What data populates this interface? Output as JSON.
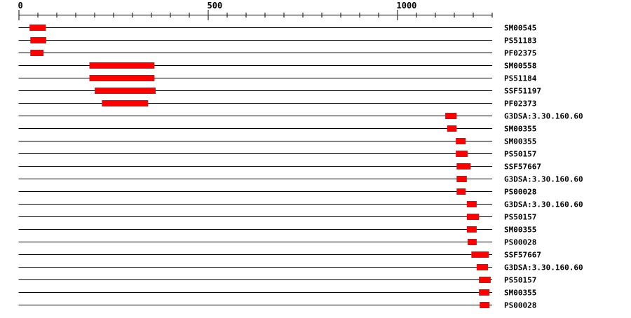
{
  "chart_data": {
    "type": "domain-map",
    "sequence_length": 1251,
    "axis": {
      "min": 0,
      "max": 1251,
      "major_ticks": [
        0,
        500,
        1000
      ],
      "minor_tick_step": 50
    },
    "bar_color": "#ff0000",
    "rows": [
      {
        "label": "SM00545",
        "start": 29,
        "end": 72
      },
      {
        "label": "PS51183",
        "start": 31,
        "end": 73
      },
      {
        "label": "PF02375",
        "start": 31,
        "end": 66
      },
      {
        "label": "SM00558",
        "start": 187,
        "end": 359
      },
      {
        "label": "PS51184",
        "start": 187,
        "end": 359
      },
      {
        "label": "SSF51197",
        "start": 201,
        "end": 362
      },
      {
        "label": "PF02373",
        "start": 220,
        "end": 342
      },
      {
        "label": "G3DSA:3.30.160.60",
        "start": 1127,
        "end": 1157
      },
      {
        "label": "SM00355",
        "start": 1132,
        "end": 1157
      },
      {
        "label": "SM00355",
        "start": 1155,
        "end": 1181
      },
      {
        "label": "PS50157",
        "start": 1155,
        "end": 1186
      },
      {
        "label": "SSF57667",
        "start": 1157,
        "end": 1194
      },
      {
        "label": "G3DSA:3.30.160.60",
        "start": 1157,
        "end": 1184
      },
      {
        "label": "PS00028",
        "start": 1157,
        "end": 1181
      },
      {
        "label": "G3DSA:3.30.160.60",
        "start": 1184,
        "end": 1210
      },
      {
        "label": "PS50157",
        "start": 1184,
        "end": 1216
      },
      {
        "label": "SM00355",
        "start": 1184,
        "end": 1210
      },
      {
        "label": "PS00028",
        "start": 1186,
        "end": 1210
      },
      {
        "label": "SSF57667",
        "start": 1196,
        "end": 1242
      },
      {
        "label": "G3DSA:3.30.160.60",
        "start": 1210,
        "end": 1240
      },
      {
        "label": "PS50157",
        "start": 1216,
        "end": 1247
      },
      {
        "label": "SM00355",
        "start": 1216,
        "end": 1244
      },
      {
        "label": "PS00028",
        "start": 1218,
        "end": 1244
      }
    ]
  }
}
